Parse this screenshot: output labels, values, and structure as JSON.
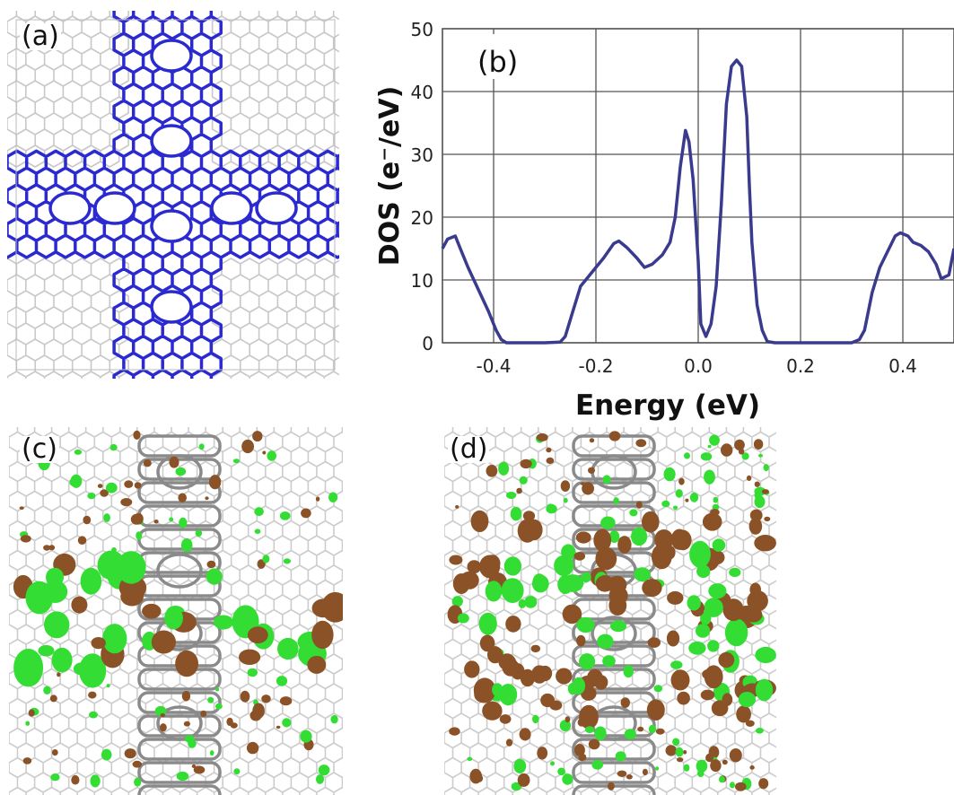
{
  "panels": {
    "a": {
      "label": "(a)"
    },
    "b": {
      "label": "(b)"
    },
    "c": {
      "label": "(c)"
    },
    "d": {
      "label": "(d)"
    }
  },
  "colors": {
    "lattice": "#c8c8c8",
    "structure": "#2a2ad0",
    "backbone": "#8a8a8a",
    "lobe_positive": "#33dd33",
    "lobe_negative": "#8a5226",
    "dos_line": "#3a3a8e",
    "grid": "#555555"
  },
  "chart_data": {
    "type": "line",
    "xlabel": "Energy (eV)",
    "ylabel": "DOS (e⁻/eV)",
    "xlim": [
      -0.5,
      0.5
    ],
    "ylim": [
      0,
      50
    ],
    "xticks": [
      -0.4,
      -0.2,
      0.0,
      0.2,
      0.4
    ],
    "xtick_labels": [
      "-0.4",
      "-0.2",
      "0.0",
      "0.2",
      "0.4"
    ],
    "yticks": [
      0,
      10,
      20,
      30,
      40,
      50
    ],
    "ytick_labels": [
      "0",
      "10",
      "20",
      "30",
      "40",
      "50"
    ],
    "grid": true,
    "series": [
      {
        "x": [
          -0.5,
          -0.49,
          -0.475,
          -0.465,
          -0.45,
          -0.43,
          -0.41,
          -0.395,
          -0.385,
          -0.375,
          -0.35,
          -0.3,
          -0.27,
          -0.26,
          -0.245,
          -0.23,
          -0.215,
          -0.2,
          -0.185,
          -0.165,
          -0.155,
          -0.14,
          -0.12,
          -0.105,
          -0.09,
          -0.07,
          -0.055,
          -0.045,
          -0.035,
          -0.025,
          -0.018,
          -0.01,
          0.0,
          0.005,
          0.015,
          0.025,
          0.035,
          0.045,
          0.055,
          0.065,
          0.075,
          0.085,
          0.095,
          0.1,
          0.105,
          0.115,
          0.125,
          0.135,
          0.15,
          0.2,
          0.25,
          0.3,
          0.315,
          0.325,
          0.34,
          0.355,
          0.37,
          0.385,
          0.395,
          0.41,
          0.42,
          0.435,
          0.45,
          0.465,
          0.475,
          0.49,
          0.5
        ],
        "y": [
          15,
          16.5,
          17,
          15,
          12,
          8.5,
          5,
          2,
          0.5,
          0,
          0,
          0,
          0.1,
          1,
          5,
          9,
          10.5,
          12,
          13.5,
          15.8,
          16.2,
          15.2,
          13.5,
          12,
          12.5,
          14,
          16,
          20,
          28,
          33.8,
          32,
          26,
          13,
          3,
          1,
          3,
          9,
          22,
          38,
          44,
          45,
          44,
          36,
          25,
          16,
          6,
          2,
          0.2,
          0,
          0,
          0,
          0,
          0.5,
          2,
          8,
          12,
          14.5,
          17,
          17.5,
          17,
          16,
          15.5,
          14.5,
          12.5,
          10.2,
          10.8,
          15
        ]
      }
    ]
  }
}
